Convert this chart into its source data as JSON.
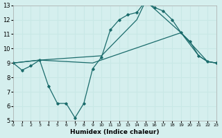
{
  "xlabel": "Humidex (Indice chaleur)",
  "xlim": [
    0,
    23
  ],
  "ylim": [
    5,
    13
  ],
  "xticks": [
    0,
    1,
    2,
    3,
    4,
    5,
    6,
    7,
    8,
    9,
    10,
    11,
    12,
    13,
    14,
    15,
    16,
    17,
    18,
    19,
    20,
    21,
    22,
    23
  ],
  "yticks": [
    5,
    6,
    7,
    8,
    9,
    10,
    11,
    12,
    13
  ],
  "bg_color": "#d5efee",
  "line_color": "#1a6b6b",
  "grid_color": "#c8e8e6",
  "line1_x": [
    0,
    1,
    2,
    3,
    4,
    5,
    6,
    7,
    8,
    9,
    10,
    11,
    12,
    13,
    14,
    15,
    16,
    17,
    18,
    19,
    20,
    21,
    22,
    23
  ],
  "line1_y": [
    9.0,
    8.5,
    8.8,
    9.2,
    7.4,
    6.2,
    6.2,
    5.2,
    6.2,
    8.6,
    9.4,
    11.3,
    12.0,
    12.35,
    12.5,
    13.3,
    12.85,
    12.6,
    12.0,
    11.1,
    10.5,
    9.5,
    9.1,
    9.0
  ],
  "line2_x": [
    0,
    3,
    10,
    14,
    15,
    19,
    21,
    22,
    23
  ],
  "line2_y": [
    9.0,
    9.2,
    9.5,
    12.0,
    13.3,
    11.1,
    9.5,
    9.1,
    9.0
  ],
  "line3_x": [
    0,
    3,
    9,
    19,
    22,
    23
  ],
  "line3_y": [
    9.0,
    9.2,
    9.0,
    11.1,
    9.1,
    9.0
  ]
}
